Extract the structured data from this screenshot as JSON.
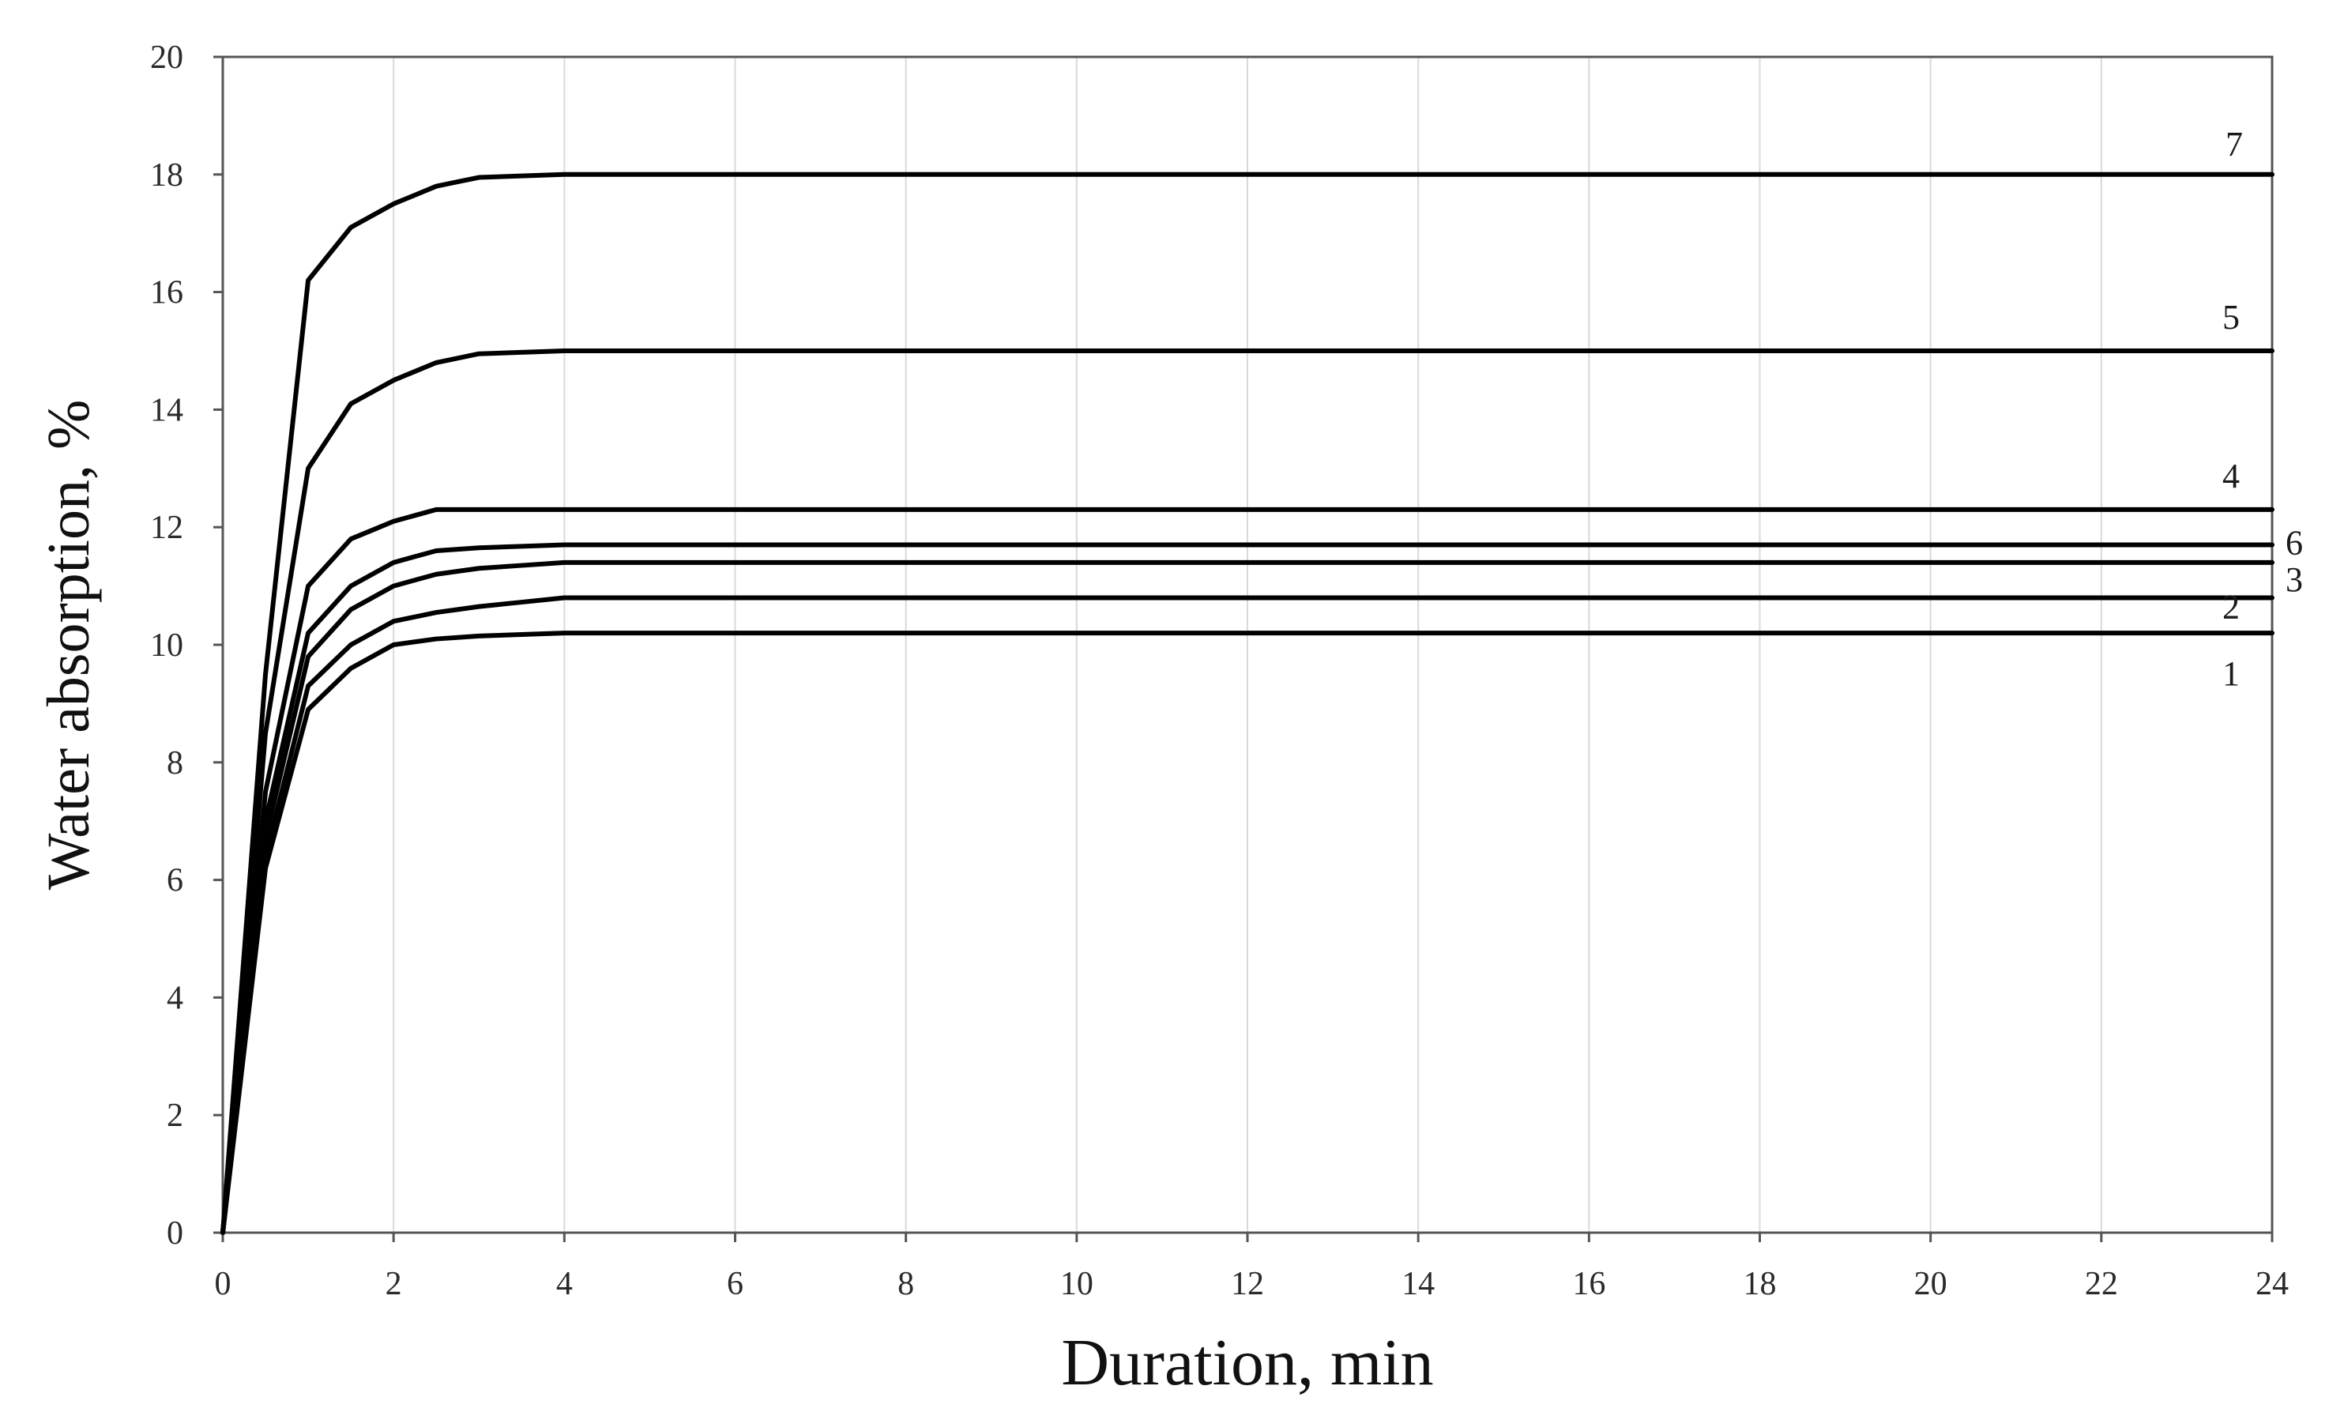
{
  "chart_data": {
    "type": "line",
    "xlabel": "Duration, min",
    "ylabel": "Water absorption, %",
    "xlim": [
      0,
      24
    ],
    "ylim": [
      0,
      20
    ],
    "xticks": [
      0,
      2,
      4,
      6,
      8,
      10,
      12,
      14,
      16,
      18,
      20,
      22,
      24
    ],
    "yticks": [
      0,
      2,
      4,
      6,
      8,
      10,
      12,
      14,
      16,
      18,
      20
    ],
    "grid": "vertical",
    "line_color": "#000000",
    "series": [
      {
        "name": "1",
        "x": [
          0,
          0.5,
          1.0,
          1.5,
          2.0,
          2.5,
          3,
          4,
          24
        ],
        "y": [
          0,
          6.2,
          8.9,
          9.6,
          10.0,
          10.1,
          10.15,
          10.2,
          10.2
        ]
      },
      {
        "name": "2",
        "x": [
          0,
          0.5,
          1.0,
          1.5,
          2.0,
          2.5,
          3,
          4,
          24
        ],
        "y": [
          0,
          6.4,
          9.3,
          10.0,
          10.4,
          10.55,
          10.65,
          10.8,
          10.8
        ]
      },
      {
        "name": "3",
        "x": [
          0,
          0.5,
          1.0,
          1.5,
          2.0,
          2.5,
          3,
          4,
          24
        ],
        "y": [
          0,
          6.7,
          9.8,
          10.6,
          11.0,
          11.2,
          11.3,
          11.4,
          11.4
        ]
      },
      {
        "name": "6",
        "x": [
          0,
          0.5,
          1.0,
          1.5,
          2.0,
          2.5,
          3,
          4,
          24
        ],
        "y": [
          0,
          7.0,
          10.2,
          11.0,
          11.4,
          11.6,
          11.65,
          11.7,
          11.7
        ]
      },
      {
        "name": "4",
        "x": [
          0,
          0.5,
          1.0,
          1.5,
          2.0,
          2.5,
          3,
          4,
          24
        ],
        "y": [
          0,
          7.5,
          11.0,
          11.8,
          12.1,
          12.3,
          12.3,
          12.3,
          12.3
        ]
      },
      {
        "name": "5",
        "x": [
          0,
          0.5,
          1.0,
          1.5,
          2.0,
          2.5,
          3,
          4,
          24
        ],
        "y": [
          0,
          8.5,
          13.0,
          14.1,
          14.5,
          14.8,
          14.95,
          15.0,
          15.0
        ]
      },
      {
        "name": "7",
        "x": [
          0,
          0.5,
          1.0,
          1.5,
          2.0,
          2.5,
          3,
          4,
          24
        ],
        "y": [
          0,
          9.5,
          16.2,
          17.1,
          17.5,
          17.8,
          17.95,
          18.0,
          18.0
        ]
      }
    ]
  }
}
